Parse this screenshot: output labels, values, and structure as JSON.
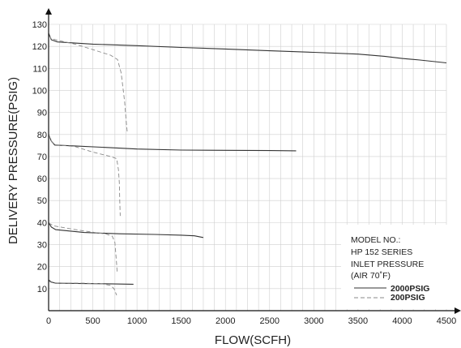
{
  "chart_data": {
    "type": "line",
    "xlabel": "FLOW(SCFH)",
    "ylabel": "DELIVERY PRESSURE(PSIG)",
    "xlim": [
      0,
      4500
    ],
    "ylim": [
      0,
      130
    ],
    "x_minor_step": 125,
    "y_grid_step": 10,
    "grid": true,
    "x_ticks": [
      {
        "value": 0,
        "label": "0"
      },
      {
        "value": 500,
        "label": "500"
      },
      {
        "value": 1000,
        "label": "1000"
      },
      {
        "value": 1500,
        "label": "1500"
      },
      {
        "value": 2000,
        "label": "2000"
      },
      {
        "value": 2500,
        "label": "2500"
      },
      {
        "value": 3000,
        "label": "3000"
      },
      {
        "value": 3500,
        "label": "3500"
      },
      {
        "value": 4000,
        "label": "4000"
      },
      {
        "value": 4500,
        "label": "4500"
      }
    ],
    "y_ticks": [
      {
        "value": 10,
        "label": "10"
      },
      {
        "value": 20,
        "label": "20"
      },
      {
        "value": 30,
        "label": "30"
      },
      {
        "value": 40,
        "label": "40"
      },
      {
        "value": 50,
        "label": "50"
      },
      {
        "value": 60,
        "label": "60"
      },
      {
        "value": 70,
        "label": "70"
      },
      {
        "value": 80,
        "label": "80"
      },
      {
        "value": 90,
        "label": "90"
      },
      {
        "value": 100,
        "label": "100"
      },
      {
        "value": 110,
        "label": "110"
      },
      {
        "value": 120,
        "label": "120"
      },
      {
        "value": 130,
        "label": "130"
      }
    ],
    "legend": {
      "position": "bottom-right",
      "title_lines": [
        "MODEL NO.:",
        "HP 152 SERIES",
        "INLET PRESSURE",
        "(AIR 70˚F)"
      ],
      "entries": [
        {
          "name": "2000PSIG",
          "style": "solid",
          "color": "#333333"
        },
        {
          "name": "200PSIG",
          "style": "dashed",
          "color": "#888888"
        }
      ]
    },
    "series": [
      {
        "group": "2000PSIG",
        "style": "solid",
        "color": "#333333",
        "points": [
          [
            0,
            126
          ],
          [
            30,
            123
          ],
          [
            100,
            122
          ],
          [
            500,
            121
          ],
          [
            1000,
            120.3
          ],
          [
            1500,
            119.5
          ],
          [
            2000,
            118.8
          ],
          [
            2500,
            118
          ],
          [
            3000,
            117.3
          ],
          [
            3500,
            116.5
          ],
          [
            3800,
            115.5
          ],
          [
            4000,
            114.5
          ],
          [
            4200,
            113.8
          ],
          [
            4500,
            112.5
          ]
        ]
      },
      {
        "group": "200PSIG",
        "style": "dashed",
        "color": "#888888",
        "points": [
          [
            0,
            125
          ],
          [
            30,
            123.5
          ],
          [
            100,
            122.8
          ],
          [
            300,
            121
          ],
          [
            500,
            118.5
          ],
          [
            700,
            116
          ],
          [
            780,
            114
          ],
          [
            820,
            108
          ],
          [
            860,
            95
          ],
          [
            880,
            85
          ],
          [
            890,
            81
          ]
        ]
      },
      {
        "group": "2000PSIG",
        "style": "solid",
        "color": "#333333",
        "points": [
          [
            0,
            80
          ],
          [
            30,
            77
          ],
          [
            70,
            75.2
          ],
          [
            300,
            74.8
          ],
          [
            600,
            74.2
          ],
          [
            1000,
            73.4
          ],
          [
            1500,
            72.9
          ],
          [
            2000,
            72.8
          ],
          [
            2500,
            72.7
          ],
          [
            2800,
            72.6
          ]
        ]
      },
      {
        "group": "200PSIG",
        "style": "dashed",
        "color": "#888888",
        "points": [
          [
            0,
            80
          ],
          [
            30,
            77
          ],
          [
            70,
            75.4
          ],
          [
            300,
            74.5
          ],
          [
            500,
            72
          ],
          [
            700,
            70
          ],
          [
            770,
            69
          ],
          [
            790,
            64
          ],
          [
            800,
            58
          ],
          [
            805,
            50
          ],
          [
            810,
            43
          ]
        ]
      },
      {
        "group": "2000PSIG",
        "style": "solid",
        "color": "#333333",
        "points": [
          [
            0,
            40
          ],
          [
            30,
            38
          ],
          [
            80,
            36.8
          ],
          [
            400,
            35.5
          ],
          [
            800,
            34.9
          ],
          [
            1200,
            34.6
          ],
          [
            1500,
            34.3
          ],
          [
            1650,
            34
          ],
          [
            1750,
            33.2
          ]
        ]
      },
      {
        "group": "200PSIG",
        "style": "dashed",
        "color": "#888888",
        "points": [
          [
            0,
            39.8
          ],
          [
            60,
            38.5
          ],
          [
            200,
            37.5
          ],
          [
            400,
            36.2
          ],
          [
            650,
            34.8
          ],
          [
            720,
            33.8
          ],
          [
            750,
            31
          ],
          [
            760,
            26
          ],
          [
            770,
            21
          ],
          [
            775,
            17.5
          ]
        ]
      },
      {
        "group": "2000PSIG",
        "style": "solid",
        "color": "#333333",
        "points": [
          [
            0,
            14
          ],
          [
            30,
            13
          ],
          [
            80,
            12.5
          ],
          [
            400,
            12.3
          ],
          [
            700,
            12.2
          ],
          [
            960,
            12
          ]
        ]
      },
      {
        "group": "200PSIG",
        "style": "dashed",
        "color": "#888888",
        "points": [
          [
            0,
            13.5
          ],
          [
            30,
            12.8
          ],
          [
            100,
            12.6
          ],
          [
            400,
            12.5
          ],
          [
            600,
            12.2
          ],
          [
            700,
            11.5
          ],
          [
            740,
            10
          ],
          [
            760,
            8
          ],
          [
            770,
            7
          ]
        ]
      }
    ]
  }
}
